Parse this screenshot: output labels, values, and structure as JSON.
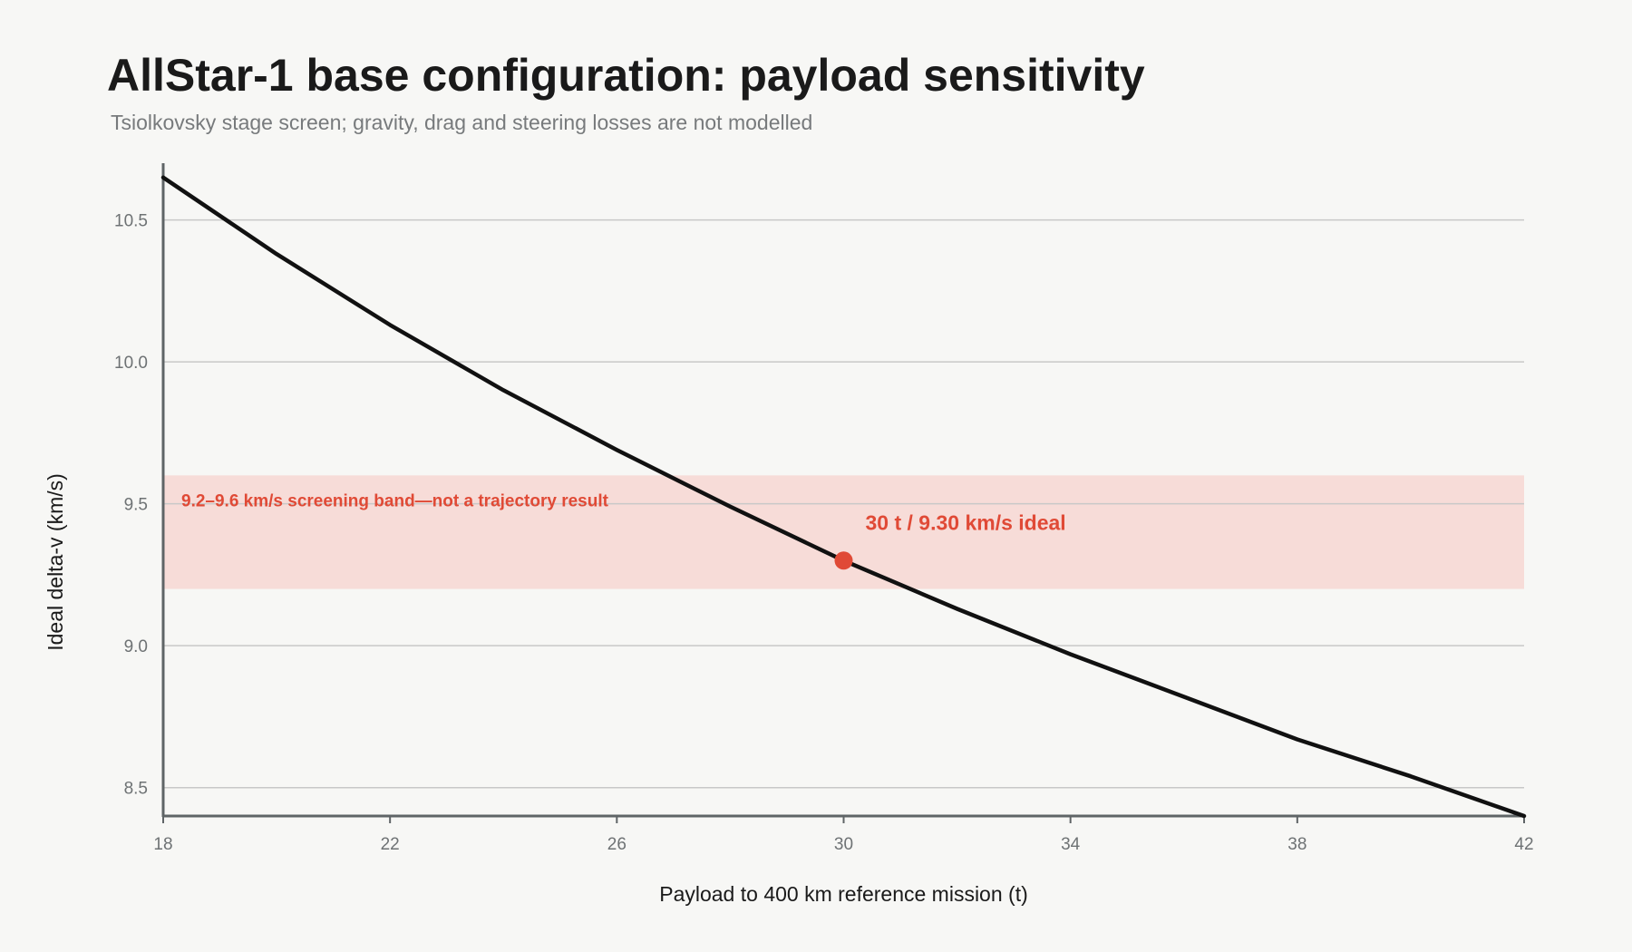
{
  "title": "AllStar-1 base configuration: payload sensitivity",
  "subtitle": "Tsiolkovsky stage screen; gravity, drag and steering losses are not modelled",
  "colors": {
    "line": "#111111",
    "highlight": "#e04a36",
    "band_fill": "#f7dcd8",
    "grid": "#c8c8c8",
    "axis": "#5f6466",
    "tick_text": "#6e7274",
    "background": "#f7f7f5"
  },
  "chart_data": {
    "type": "line",
    "xlabel": "Payload to 400 km reference mission (t)",
    "ylabel": "Ideal delta-v (km/s)",
    "xlim": [
      18,
      42
    ],
    "ylim": [
      8.4,
      10.7
    ],
    "x_ticks": [
      18,
      22,
      26,
      30,
      34,
      38,
      42
    ],
    "x_tick_labels": [
      "18",
      "22",
      "26",
      "30",
      "34",
      "38",
      "42"
    ],
    "y_ticks": [
      8.5,
      9.0,
      9.5,
      10.0,
      10.5
    ],
    "y_tick_labels": [
      "8.5",
      "9.0",
      "9.5",
      "10.0",
      "10.5"
    ],
    "grid": true,
    "series": [
      {
        "x": [
          18,
          20,
          22,
          24,
          26,
          28,
          30,
          32,
          34,
          36,
          38,
          40,
          42
        ],
        "y": [
          10.65,
          10.38,
          10.13,
          9.9,
          9.69,
          9.49,
          9.3,
          9.13,
          8.97,
          8.82,
          8.67,
          8.54,
          8.4
        ]
      }
    ],
    "band": {
      "y_min": 9.2,
      "y_max": 9.6,
      "label": "9.2–9.6 km/s screening band—not a trajectory result"
    },
    "highlight_point": {
      "x": 30,
      "y": 9.3,
      "label": "30 t / 9.30 km/s ideal"
    }
  }
}
